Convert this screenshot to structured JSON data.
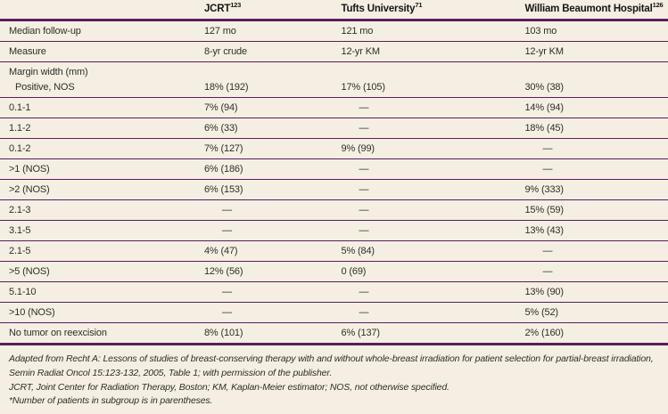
{
  "table": {
    "columns": [
      {
        "label": "",
        "sup": ""
      },
      {
        "label": "JCRT",
        "sup": "123"
      },
      {
        "label": "Tufts University",
        "sup": "71"
      },
      {
        "label": "William Beaumont Hospital",
        "sup": "126"
      }
    ],
    "rows": [
      {
        "label": "Median follow-up",
        "values": [
          "127 mo",
          "121 mo",
          "103 mo"
        ]
      },
      {
        "label": "Measure",
        "values": [
          "8-yr crude",
          "12-yr KM",
          "12-yr KM"
        ]
      },
      {
        "group_label": "Margin width (mm)",
        "label": "Positive, NOS",
        "values": [
          "18% (192)",
          "17% (105)",
          "30% (38)"
        ]
      },
      {
        "label": "0.1-1",
        "values": [
          "7% (94)",
          "—",
          "14% (94)"
        ]
      },
      {
        "label": "1.1-2",
        "values": [
          "6% (33)",
          "—",
          "18% (45)"
        ]
      },
      {
        "label": "0.1-2",
        "values": [
          "7% (127)",
          "9% (99)",
          "—"
        ]
      },
      {
        "label": ">1 (NOS)",
        "values": [
          "6% (186)",
          "—",
          "—"
        ]
      },
      {
        "label": ">2 (NOS)",
        "values": [
          "6% (153)",
          "—",
          "9% (333)"
        ]
      },
      {
        "label": "2.1-3",
        "values": [
          "—",
          "—",
          "15% (59)"
        ]
      },
      {
        "label": "3.1-5",
        "values": [
          "—",
          "—",
          "13% (43)"
        ]
      },
      {
        "label": "2.1-5",
        "values": [
          "4% (47)",
          "5% (84)",
          "—"
        ]
      },
      {
        "label": ">5 (NOS)",
        "values": [
          "12% (56)",
          "0 (69)",
          "—"
        ]
      },
      {
        "label": "5.1-10",
        "values": [
          "—",
          "—",
          "13% (90)"
        ]
      },
      {
        "label": ">10 (NOS)",
        "values": [
          "—",
          "—",
          "5% (52)"
        ]
      },
      {
        "label": "No tumor on reexcision",
        "values": [
          "8% (101)",
          "6% (137)",
          "2% (160)"
        ]
      }
    ]
  },
  "footnotes": {
    "source": "Adapted from Recht A: Lessons of studies of breast-conserving therapy with and without whole-breast irradiation for patient selection for partial-breast irradiation, Semin Radiat Oncol 15:123-132, 2005, Table 1; with permission of the publisher.",
    "abbreviations": "JCRT, Joint Center for Radiation Therapy, Boston; KM, Kaplan-Meier estimator; NOS, not otherwise specified.",
    "asterisk": "*Number of patients in subgroup is in parentheses."
  },
  "colors": {
    "background": "#f4efe2",
    "rule": "#5b1c5d",
    "text": "#2f2e2a"
  }
}
